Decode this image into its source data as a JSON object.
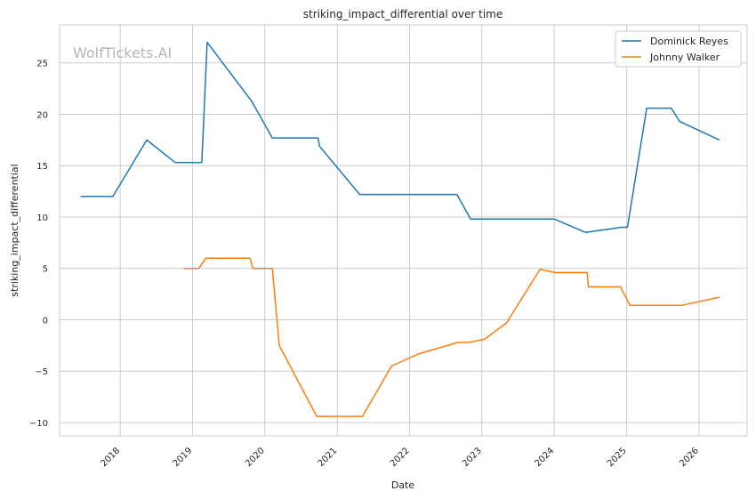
{
  "chart_data": {
    "type": "line",
    "title": "striking_impact_differential over time",
    "xlabel": "Date",
    "ylabel": "striking_impact_differential",
    "watermark": "WolfTickets.AI",
    "xlim": [
      "2017-03-01",
      "2026-09-01"
    ],
    "ylim": [
      -11.3,
      28.7
    ],
    "xticks": [
      {
        "label": "2018",
        "date": "2018-01-01"
      },
      {
        "label": "2019",
        "date": "2019-01-01"
      },
      {
        "label": "2020",
        "date": "2020-01-01"
      },
      {
        "label": "2021",
        "date": "2021-01-01"
      },
      {
        "label": "2022",
        "date": "2022-01-01"
      },
      {
        "label": "2023",
        "date": "2023-01-01"
      },
      {
        "label": "2024",
        "date": "2024-01-01"
      },
      {
        "label": "2025",
        "date": "2025-01-01"
      },
      {
        "label": "2026",
        "date": "2026-01-01"
      }
    ],
    "yticks": [
      {
        "label": "25",
        "value": 25
      },
      {
        "label": "20",
        "value": 20
      },
      {
        "label": "15",
        "value": 15
      },
      {
        "label": "10",
        "value": 10
      },
      {
        "label": "5",
        "value": 5
      },
      {
        "label": "0",
        "value": 0
      },
      {
        "label": "−5",
        "value": -5
      },
      {
        "label": "−10",
        "value": -10
      }
    ],
    "grid": true,
    "legend_position": "top-right",
    "series": [
      {
        "name": "Dominick Reyes",
        "color": "#1f77b4",
        "points": [
          [
            "2017-06-15",
            12.0
          ],
          [
            "2017-11-25",
            12.0
          ],
          [
            "2018-05-15",
            17.5
          ],
          [
            "2018-10-06",
            15.3
          ],
          [
            "2019-02-17",
            15.3
          ],
          [
            "2019-03-16",
            27.0
          ],
          [
            "2019-10-18",
            21.5
          ],
          [
            "2019-10-26",
            21.3
          ],
          [
            "2020-02-08",
            17.7
          ],
          [
            "2020-09-26",
            17.7
          ],
          [
            "2020-10-03",
            16.9
          ],
          [
            "2021-04-24",
            12.2
          ],
          [
            "2022-08-28",
            12.2
          ],
          [
            "2022-11-05",
            9.8
          ],
          [
            "2024-01-02",
            9.8
          ],
          [
            "2024-06-08",
            8.5
          ],
          [
            "2024-12-07",
            9.0
          ],
          [
            "2025-01-05",
            9.0
          ],
          [
            "2025-04-12",
            20.6
          ],
          [
            "2025-08-14",
            20.6
          ],
          [
            "2025-09-26",
            19.3
          ],
          [
            "2026-04-15",
            17.5
          ]
        ]
      },
      {
        "name": "Johnny Walker",
        "color": "#ff7f0e",
        "points": [
          [
            "2018-11-17",
            5.0
          ],
          [
            "2019-02-02",
            5.0
          ],
          [
            "2019-03-09",
            6.0
          ],
          [
            "2019-10-18",
            6.0
          ],
          [
            "2019-11-02",
            5.0
          ],
          [
            "2020-02-08",
            5.0
          ],
          [
            "2020-03-14",
            -2.5
          ],
          [
            "2020-09-19",
            -9.4
          ],
          [
            "2021-05-08",
            -9.4
          ],
          [
            "2021-10-02",
            -4.5
          ],
          [
            "2022-02-19",
            -3.3
          ],
          [
            "2022-09-03",
            -2.2
          ],
          [
            "2022-10-29",
            -2.2
          ],
          [
            "2023-01-14",
            -1.9
          ],
          [
            "2023-05-06",
            -0.3
          ],
          [
            "2023-10-21",
            4.9
          ],
          [
            "2024-01-06",
            4.6
          ],
          [
            "2024-06-15",
            4.6
          ],
          [
            "2024-06-22",
            3.2
          ],
          [
            "2024-11-30",
            3.2
          ],
          [
            "2025-01-18",
            1.4
          ],
          [
            "2025-10-04",
            1.4
          ],
          [
            "2026-04-15",
            2.2
          ]
        ]
      }
    ]
  }
}
